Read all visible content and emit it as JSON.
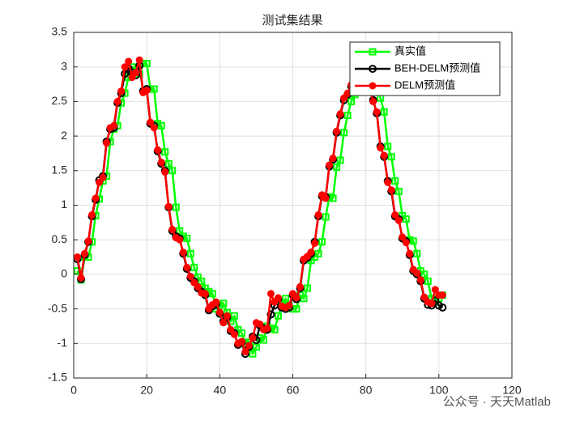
{
  "chart_data": {
    "type": "line",
    "title": "测试集结果",
    "x": [
      1,
      2,
      3,
      4,
      5,
      6,
      7,
      8,
      9,
      10,
      11,
      12,
      13,
      14,
      15,
      16,
      17,
      18,
      19,
      20,
      21,
      22,
      23,
      24,
      25,
      26,
      27,
      28,
      29,
      30,
      31,
      32,
      33,
      34,
      35,
      36,
      37,
      38,
      39,
      40,
      41,
      42,
      43,
      44,
      45,
      46,
      47,
      48,
      49,
      50,
      51,
      52,
      53,
      54,
      55,
      56,
      57,
      58,
      59,
      60,
      61,
      62,
      63,
      64,
      65,
      66,
      67,
      68,
      69,
      70,
      71,
      72,
      73,
      74,
      75,
      76,
      77,
      78,
      79,
      80,
      81,
      82,
      83,
      84,
      85,
      86,
      87,
      88,
      89,
      90,
      91,
      92,
      93,
      94,
      95,
      96,
      97,
      98,
      99,
      100,
      101
    ],
    "series": [
      {
        "name": "真实值",
        "color": "#00ff00",
        "marker": "square",
        "values": [
          0.05,
          -0.08,
          0.25,
          0.25,
          0.47,
          0.85,
          1.09,
          1.35,
          1.42,
          1.92,
          2.1,
          2.15,
          2.48,
          2.62,
          2.85,
          3.0,
          2.95,
          2.9,
          3.05,
          3.05,
          2.68,
          2.68,
          2.18,
          2.15,
          1.77,
          1.6,
          1.5,
          0.97,
          0.63,
          0.55,
          0.52,
          0.3,
          0.1,
          -0.04,
          -0.1,
          -0.2,
          -0.25,
          -0.28,
          -0.5,
          -0.45,
          -0.42,
          -0.55,
          -0.68,
          -0.6,
          -0.8,
          -0.85,
          -1.0,
          -0.98,
          -1.15,
          -1.05,
          -0.92,
          -0.95,
          -0.75,
          -0.78,
          -0.8,
          -0.6,
          -0.45,
          -0.35,
          -0.45,
          -0.5,
          -0.5,
          -0.3,
          -0.35,
          -0.2,
          0.2,
          0.25,
          0.3,
          0.47,
          0.83,
          1.12,
          1.1,
          1.55,
          1.65,
          2.05,
          2.3,
          2.5,
          2.6,
          2.7,
          2.85,
          2.9,
          2.8,
          2.75,
          2.7,
          2.55,
          2.35,
          1.85,
          1.7,
          1.35,
          1.2,
          0.85,
          0.8,
          0.5,
          0.48,
          0.3,
          0.05,
          0.0,
          -0.1,
          -0.35,
          -0.4,
          -0.35,
          -0.3
        ]
      },
      {
        "name": "BEH-DELM预测值",
        "color": "#000000",
        "marker": "circle-open",
        "values": [
          0.22,
          -0.07,
          0.28,
          0.47,
          0.84,
          1.08,
          1.36,
          1.42,
          1.92,
          2.1,
          2.12,
          2.48,
          2.62,
          2.9,
          2.98,
          2.92,
          2.88,
          3.02,
          2.65,
          2.68,
          2.18,
          2.15,
          1.78,
          1.6,
          1.5,
          0.97,
          0.63,
          0.55,
          0.52,
          0.3,
          0.08,
          -0.05,
          -0.1,
          -0.2,
          -0.25,
          -0.3,
          -0.52,
          -0.46,
          -0.43,
          -0.57,
          -0.68,
          -0.62,
          -0.82,
          -0.85,
          -1.02,
          -0.98,
          -1.15,
          -1.05,
          -0.9,
          -0.95,
          -0.74,
          -0.78,
          -0.8,
          -0.58,
          -0.45,
          -0.36,
          -0.48,
          -0.5,
          -0.48,
          -0.3,
          -0.36,
          -0.2,
          0.2,
          0.24,
          0.3,
          0.47,
          0.84,
          1.13,
          1.12,
          1.56,
          1.66,
          2.05,
          2.3,
          2.52,
          2.6,
          2.72,
          2.85,
          2.9,
          2.8,
          2.75,
          2.68,
          2.52,
          2.33,
          1.85,
          1.7,
          1.35,
          1.2,
          0.84,
          0.8,
          0.52,
          0.48,
          0.28,
          0.05,
          0.0,
          -0.1,
          -0.35,
          -0.44,
          -0.45,
          -0.38,
          -0.45,
          -0.48
        ]
      },
      {
        "name": "DELM预测值",
        "color": "#ff0000",
        "marker": "circle-filled",
        "values": [
          0.25,
          -0.05,
          0.3,
          0.48,
          0.86,
          1.1,
          1.33,
          1.4,
          1.9,
          2.12,
          2.15,
          2.5,
          2.65,
          3.0,
          3.08,
          2.85,
          2.92,
          3.1,
          2.63,
          2.66,
          2.2,
          2.12,
          1.8,
          1.62,
          1.48,
          0.98,
          0.65,
          0.53,
          0.5,
          0.32,
          0.1,
          -0.03,
          -0.12,
          -0.18,
          -0.27,
          -0.28,
          -0.5,
          -0.44,
          -0.4,
          -0.55,
          -0.7,
          -0.6,
          -0.8,
          -0.87,
          -1.0,
          -0.97,
          -1.12,
          -1.03,
          -0.92,
          -0.7,
          -0.72,
          -0.8,
          -0.78,
          -0.28,
          -0.4,
          -0.34,
          -0.46,
          -0.48,
          -0.45,
          -0.28,
          -0.34,
          -0.18,
          0.22,
          0.26,
          0.32,
          0.45,
          0.86,
          1.15,
          1.1,
          1.58,
          1.68,
          2.07,
          2.32,
          2.55,
          2.62,
          2.74,
          2.87,
          2.88,
          2.78,
          2.73,
          2.7,
          2.5,
          2.35,
          1.83,
          1.72,
          1.33,
          1.22,
          0.86,
          0.78,
          0.54,
          0.46,
          0.3,
          0.07,
          0.02,
          -0.08,
          -0.33,
          -0.4,
          -0.42,
          -0.22,
          -0.3,
          -0.3
        ]
      }
    ],
    "xlim": [
      0,
      120
    ],
    "xticks": [
      0,
      20,
      40,
      60,
      80,
      100,
      120
    ],
    "ylim": [
      -1.5,
      3.5
    ],
    "yticks": [
      -1.5,
      -1,
      -0.5,
      0,
      0.5,
      1,
      1.5,
      2,
      2.5,
      3,
      3.5
    ],
    "grid": true,
    "legend": "northeast",
    "annotation": "公众号 · 天天Matlab"
  }
}
